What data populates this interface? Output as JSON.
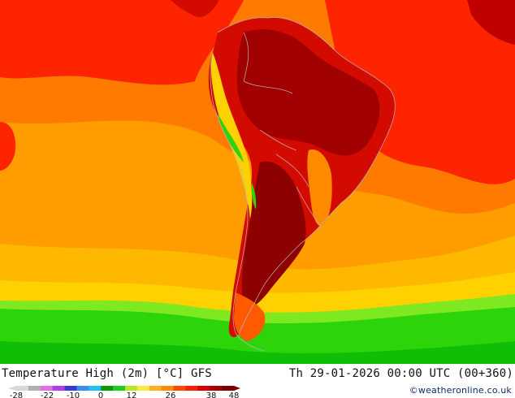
{
  "title": "Temperature High (2m) [°C] GFS",
  "timestamp": "Th 29-01-2026 00:00 UTC (00+360)",
  "credit": "©weatheronline.co.uk",
  "legend": {
    "ticks": [
      "-28",
      "-22",
      "-10",
      "0",
      "12",
      "26",
      "38",
      "48"
    ],
    "colors": [
      "#d8d8d8",
      "#b0b0b0",
      "#e26ee2",
      "#b23ce8",
      "#3a3ad8",
      "#3a8cf0",
      "#20c0f0",
      "#0a9a0a",
      "#20cc20",
      "#b8e820",
      "#ffe640",
      "#ffb020",
      "#ff8a00",
      "#ff4a00",
      "#ff1e00",
      "#d80000",
      "#a80000",
      "#7a0000"
    ]
  },
  "colors": {
    "ocean_orange": "#ff9c00",
    "ocean_deep_orange": "#ff7a00",
    "ocean_red": "#ff2400",
    "land_dark_red": "#a00000",
    "land_red": "#d20a00",
    "south_yellow": "#ffd100",
    "south_green": "#2ed40a",
    "far_south_green": "#0fbf06",
    "border_lines": "#b8b8b8"
  }
}
